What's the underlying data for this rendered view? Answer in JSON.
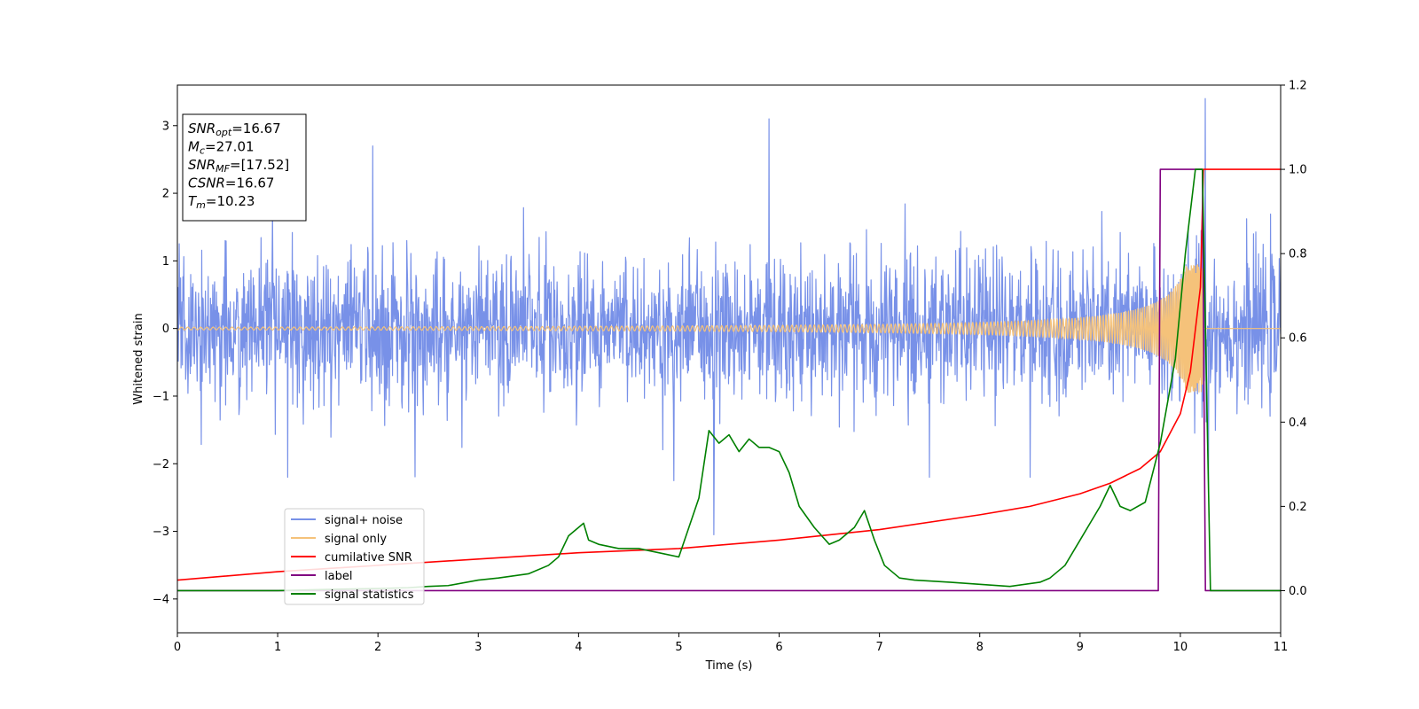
{
  "chart_data": {
    "type": "line",
    "xlabel": "Time (s)",
    "ylabel": "Whitened strain",
    "xlim": [
      0,
      11
    ],
    "ylim": [
      -4.5,
      3.6
    ],
    "y2lim": [
      -0.1,
      1.2
    ],
    "xticks": [
      0,
      1,
      2,
      3,
      4,
      5,
      6,
      7,
      8,
      9,
      10,
      11
    ],
    "yticks": [
      -4,
      -3,
      -2,
      -1,
      0,
      1,
      2,
      3
    ],
    "y2ticks": [
      0.0,
      0.2,
      0.4,
      0.6,
      0.8,
      1.0,
      1.2
    ],
    "legend_position": "lower-left",
    "annotation": {
      "position": "top-left",
      "lines": [
        {
          "sym": "SNR",
          "sub": "opt",
          "val": "=16.67"
        },
        {
          "sym": "M",
          "sub": "c",
          "val": "=27.01"
        },
        {
          "sym": "SNR",
          "sub": "MF",
          "val": "=[17.52]"
        },
        {
          "sym": "CSNR",
          "sub": "",
          "val": "=16.67"
        },
        {
          "sym": "T",
          "sub": "m",
          "val": "=10.23"
        }
      ]
    },
    "series": [
      {
        "name": "signal+ noise",
        "axis": "left",
        "color": "#7891e8",
        "description": "noise-dominated whitened strain, roughly within -1.4..1.4 with spikes",
        "envelope": {
          "typical_amplitude": 1.3,
          "seed": 7
        },
        "spikes": [
          [
            1.95,
            2.7
          ],
          [
            5.9,
            3.1
          ],
          [
            10.25,
            3.4
          ],
          [
            10.28,
            -2.45
          ],
          [
            1.1,
            -2.2
          ],
          [
            4.95,
            -2.25
          ],
          [
            7.5,
            -2.2
          ],
          [
            8.5,
            -2.2
          ],
          [
            5.35,
            -3.05
          ]
        ]
      },
      {
        "name": "signal only",
        "axis": "left",
        "color": "#f5c27a",
        "chirp": {
          "t_merge": 10.23,
          "amplitude_start": 0.02,
          "amplitude_peak": 0.95
        }
      },
      {
        "name": "cumilative SNR",
        "axis": "right",
        "color": "#ff0000",
        "x": [
          0,
          1,
          2,
          3,
          4,
          5,
          6,
          7,
          8,
          8.5,
          9,
          9.3,
          9.6,
          9.8,
          10.0,
          10.1,
          10.2,
          10.23,
          10.3,
          11
        ],
        "y": [
          0.025,
          0.045,
          0.06,
          0.075,
          0.09,
          0.1,
          0.12,
          0.145,
          0.18,
          0.2,
          0.23,
          0.255,
          0.29,
          0.33,
          0.42,
          0.52,
          0.72,
          1.0,
          1.0,
          1.0
        ]
      },
      {
        "name": "label",
        "axis": "right",
        "color": "#800080",
        "x": [
          0,
          9.78,
          9.8,
          10.22,
          10.25,
          11
        ],
        "y": [
          0,
          0,
          1,
          1,
          0,
          0
        ]
      },
      {
        "name": "signal statistics",
        "axis": "right",
        "color": "#008000",
        "x": [
          0,
          0.5,
          1,
          1.5,
          2,
          2.3,
          2.5,
          2.7,
          3,
          3.2,
          3.5,
          3.7,
          3.8,
          3.9,
          4.05,
          4.1,
          4.2,
          4.4,
          4.6,
          4.8,
          5,
          5.1,
          5.2,
          5.3,
          5.4,
          5.5,
          5.6,
          5.7,
          5.8,
          5.9,
          6,
          6.1,
          6.2,
          6.35,
          6.5,
          6.6,
          6.75,
          6.85,
          6.95,
          7.05,
          7.2,
          7.35,
          7.5,
          7.7,
          8,
          8.3,
          8.6,
          8.7,
          8.85,
          9,
          9.1,
          9.2,
          9.3,
          9.4,
          9.5,
          9.65,
          9.8,
          9.95,
          10.05,
          10.15,
          10.22,
          10.3,
          11
        ],
        "y": [
          0,
          0,
          0,
          0.003,
          0.005,
          0.007,
          0.01,
          0.012,
          0.025,
          0.03,
          0.04,
          0.06,
          0.08,
          0.13,
          0.16,
          0.12,
          0.11,
          0.1,
          0.1,
          0.09,
          0.08,
          0.15,
          0.22,
          0.38,
          0.35,
          0.37,
          0.33,
          0.36,
          0.34,
          0.34,
          0.33,
          0.28,
          0.2,
          0.15,
          0.11,
          0.12,
          0.15,
          0.19,
          0.12,
          0.06,
          0.03,
          0.025,
          0.023,
          0.02,
          0.015,
          0.01,
          0.02,
          0.03,
          0.06,
          0.12,
          0.16,
          0.2,
          0.25,
          0.2,
          0.19,
          0.21,
          0.35,
          0.55,
          0.8,
          1.0,
          1.0,
          0.0,
          0.0
        ]
      }
    ]
  }
}
